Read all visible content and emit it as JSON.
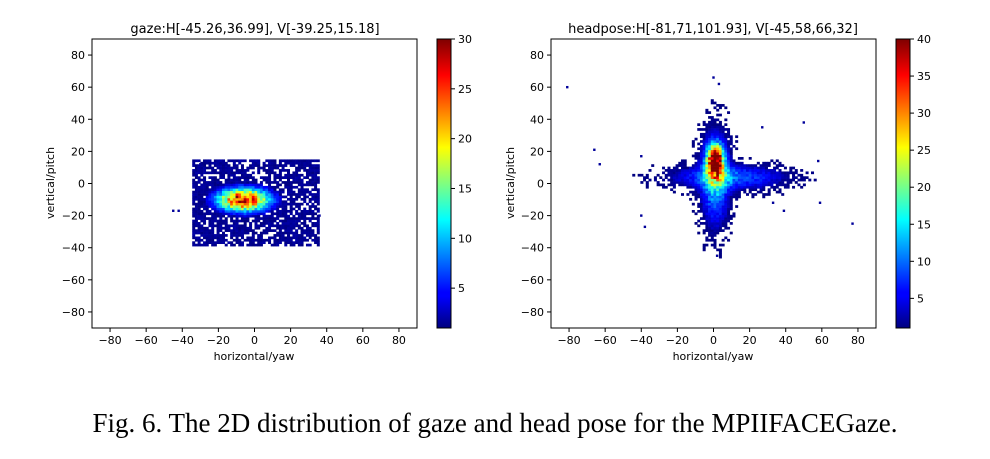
{
  "caption": "Fig. 6.  The 2D distribution of gaze and head pose for the MPIIFACEGaze.",
  "colormap": "jet",
  "chart_data": [
    {
      "type": "heatmap",
      "title": "gaze:H[-45.26,36.99], V[-39.25,15.18]",
      "xlabel": "horizontal/yaw",
      "ylabel": "vertical/pitch",
      "xlim": [
        -90,
        90
      ],
      "ylim": [
        -90,
        90
      ],
      "xticks": [
        "−80",
        "−60",
        "−40",
        "−20",
        "0",
        "20",
        "40",
        "60",
        "80"
      ],
      "yticks": [
        "80",
        "60",
        "40",
        "20",
        "0",
        "−20",
        "−40",
        "−60",
        "−80"
      ],
      "colorbar": {
        "min": 1,
        "max": 30,
        "ticks": [
          "5",
          "10",
          "15",
          "20",
          "25",
          "30"
        ]
      },
      "horizontal_range": [
        -45.26,
        36.99
      ],
      "vertical_range": [
        -39.25,
        15.18
      ],
      "distribution": [
        {
          "shape": "ellipse",
          "center": [
            -6,
            -10
          ],
          "sigma": [
            10,
            5
          ],
          "peak": 28
        }
      ],
      "bounds": {
        "x": [
          -34,
          36
        ],
        "y": [
          -39,
          15
        ]
      },
      "outliers": [
        [
          -45,
          -17
        ],
        [
          -42,
          -17
        ],
        [
          36,
          -20
        ],
        [
          -30,
          12
        ]
      ]
    },
    {
      "type": "heatmap",
      "title": "headpose:H[-81,71,101.93], V[-45,58,66,32]",
      "xlabel": "horizontal/yaw",
      "ylabel": "vertical/pitch",
      "xlim": [
        -90,
        90
      ],
      "ylim": [
        -90,
        90
      ],
      "xticks": [
        "−80",
        "−60",
        "−40",
        "−20",
        "0",
        "20",
        "40",
        "60",
        "80"
      ],
      "yticks": [
        "80",
        "60",
        "40",
        "20",
        "0",
        "−20",
        "−40",
        "−60",
        "−80"
      ],
      "colorbar": {
        "min": 1,
        "max": 40,
        "ticks": [
          "5",
          "10",
          "15",
          "20",
          "25",
          "30",
          "35",
          "40"
        ]
      },
      "horizontal_range": [
        -81.71,
        101.93
      ],
      "vertical_range": [
        -45.58,
        66.32
      ],
      "distribution": [
        {
          "shape": "ellipse",
          "center": [
            1,
            15
          ],
          "sigma": [
            3,
            6
          ],
          "peak": 38
        },
        {
          "shape": "ellipse",
          "center": [
            1,
            3
          ],
          "sigma": [
            5,
            18
          ],
          "peak": 14
        },
        {
          "shape": "ellipse",
          "center": [
            8,
            4
          ],
          "sigma": [
            20,
            5
          ],
          "peak": 10
        }
      ],
      "outliers": [
        [
          -81,
          60
        ],
        [
          -66,
          21
        ],
        [
          -63,
          12
        ],
        [
          -40,
          -20
        ],
        [
          -38,
          -27
        ],
        [
          50,
          38
        ],
        [
          58,
          14
        ],
        [
          59,
          -12
        ],
        [
          77,
          -25
        ],
        [
          27,
          35
        ],
        [
          33,
          -12
        ],
        [
          39,
          -17
        ],
        [
          -40,
          17
        ],
        [
          0,
          66
        ],
        [
          3,
          62
        ],
        [
          2,
          -45
        ]
      ]
    }
  ]
}
